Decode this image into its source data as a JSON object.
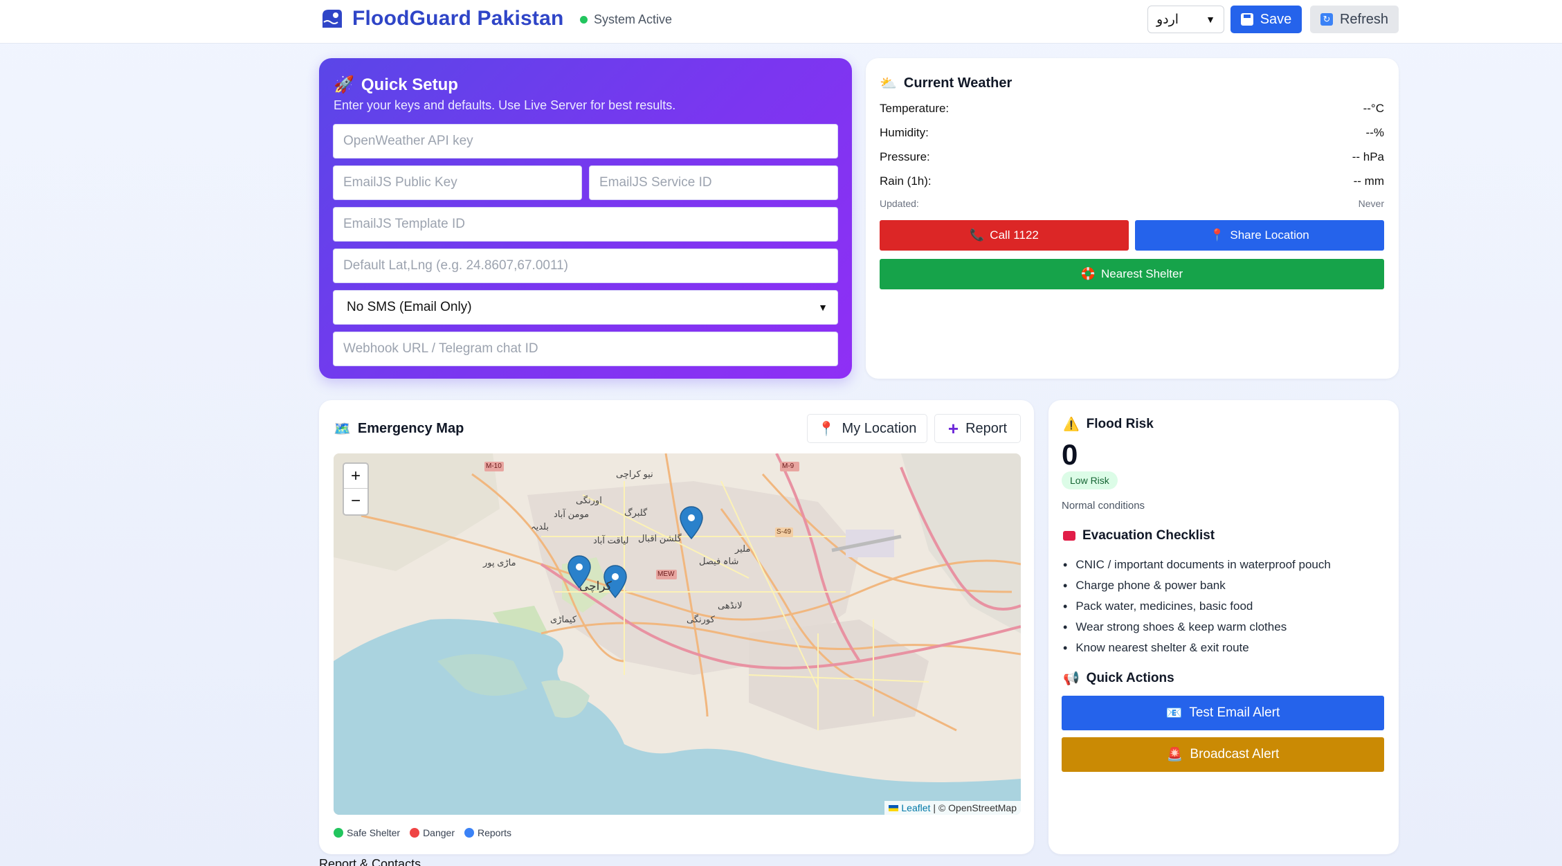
{
  "header": {
    "title": "FloodGuard Pakistan",
    "status": "System Active",
    "language_selected": "اردو",
    "save_label": "Save",
    "refresh_label": "Refresh"
  },
  "setup": {
    "title": "Quick Setup",
    "subtitle": "Enter your keys and defaults. Use Live Server for best results.",
    "openweather_placeholder": "OpenWeather API key",
    "emailjs_public_placeholder": "EmailJS Public Key",
    "emailjs_service_placeholder": "EmailJS Service ID",
    "emailjs_template_placeholder": "EmailJS Template ID",
    "latlng_placeholder": "Default Lat,Lng (e.g. 24.8607,67.0011)",
    "sms_selected": "No SMS (Email Only)",
    "webhook_placeholder": "Webhook URL / Telegram chat ID"
  },
  "weather": {
    "title": "Current Weather",
    "rows": [
      {
        "label": "Temperature:",
        "value": "--°C"
      },
      {
        "label": "Humidity:",
        "value": "--%"
      },
      {
        "label": "Pressure:",
        "value": "-- hPa"
      },
      {
        "label": "Rain (1h):",
        "value": "-- mm"
      }
    ],
    "updated_label": "Updated:",
    "updated_value": "Never",
    "call_label": "Call 1122",
    "share_label": "Share Location",
    "shelter_label": "Nearest Shelter"
  },
  "map": {
    "title": "Emergency Map",
    "my_location_label": "My Location",
    "report_label": "Report",
    "zoom_in": "+",
    "zoom_out": "−",
    "attrib_leaflet": "Leaflet",
    "attrib_osm": "| © OpenStreetMap",
    "legend": [
      "Safe Shelter",
      "Danger",
      "Reports"
    ],
    "labels": {
      "karachi": "کراچی",
      "gulshan": "گلشن اقبال",
      "korangi": "کورنگی",
      "landhi": "لانڈھی",
      "orangi": "اورنگی",
      "mominabad": "مومن آباد",
      "baldia": "بلدیہ",
      "new_karachi": "نیو کراچی",
      "gulberg": "گلبرگ",
      "liaquatabad": "لیاقت آباد",
      "malir": "ملیر",
      "shah_faisal": "شاہ فیصل",
      "kemari": "کیماڑی",
      "mauripur": "ماڑی پور",
      "m10": "M-10",
      "m9": "M-9",
      "s49": "S-49",
      "mew": "MEW"
    }
  },
  "risk": {
    "title": "Flood Risk",
    "score": "0",
    "level": "Low Risk",
    "note": "Normal conditions"
  },
  "checklist": {
    "title": "Evacuation Checklist",
    "items": [
      "CNIC / important documents in waterproof pouch",
      "Charge phone & power bank",
      "Pack water, medicines, basic food",
      "Wear strong shoes & keep warm clothes",
      "Know nearest shelter & exit route"
    ]
  },
  "actions": {
    "title": "Quick Actions",
    "test_email": "Test Email Alert",
    "broadcast": "Broadcast Alert"
  },
  "footer_peek": "Report & Contacts",
  "colors": {
    "brand": "#2f45c7",
    "primary": "#2563eb",
    "danger": "#dc2626",
    "success": "#16a34a",
    "warning": "#ca8a04",
    "setup_gradient_start": "#5a46e8",
    "setup_gradient_end": "#8f2ff5"
  }
}
